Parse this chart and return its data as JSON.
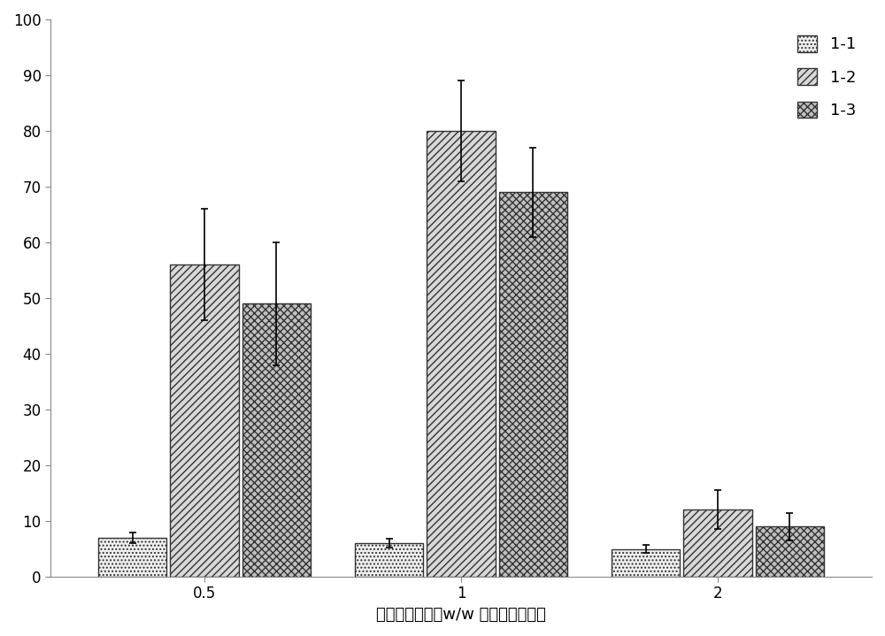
{
  "categories": [
    "0.5",
    "1",
    "2"
  ],
  "series": {
    "1-1": {
      "values": [
        7.0,
        6.0,
        5.0
      ],
      "errors": [
        1.0,
        0.8,
        0.7
      ],
      "hatch": "....",
      "facecolor": "#f0f0f0",
      "edgecolor": "#333333"
    },
    "1-2": {
      "values": [
        56.0,
        80.0,
        12.0
      ],
      "errors": [
        10.0,
        9.0,
        3.5
      ],
      "hatch": "////",
      "facecolor": "#d8d8d8",
      "edgecolor": "#333333"
    },
    "1-3": {
      "values": [
        49.0,
        69.0,
        9.0
      ],
      "errors": [
        11.0,
        8.0,
        2.5
      ],
      "hatch": "xxxx",
      "facecolor": "#c0c0c0",
      "edgecolor": "#333333"
    }
  },
  "xlabel": "氢氧化鑰浓度％w/w （％豆粕质量）",
  "ylim": [
    0,
    100
  ],
  "yticks": [
    0,
    10,
    20,
    30,
    40,
    50,
    60,
    70,
    80,
    90,
    100
  ],
  "bar_width": 0.28,
  "legend_fontsize": 13,
  "xlabel_fontsize": 13,
  "tick_fontsize": 12,
  "background_color": "#ffffff",
  "legend_handle_size": 1.2,
  "x_positions": [
    0.5,
    1.0,
    2.0
  ]
}
